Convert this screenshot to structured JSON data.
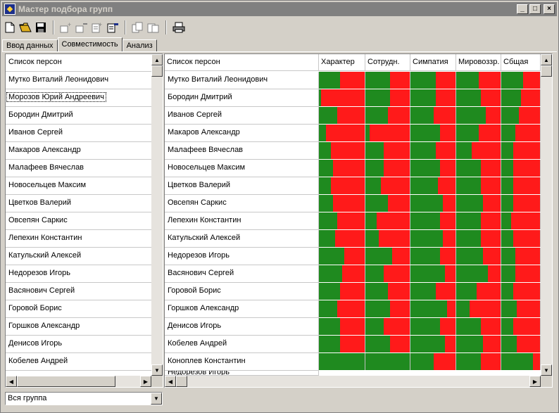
{
  "window": {
    "title": "Мастер подбора групп"
  },
  "title_buttons": {
    "minimize": "_",
    "maximize": "□",
    "close": "×"
  },
  "toolbar": {
    "icons": [
      "new-file-icon",
      "open-folder-icon",
      "save-icon",
      "add-group-icon",
      "remove-group-icon",
      "add-page-icon",
      "edit-page-icon",
      "copy-icon",
      "paste-icon",
      "print-icon"
    ]
  },
  "tabs": [
    "Ввод данных",
    "Совместимость",
    "Анализ"
  ],
  "active_tab": 1,
  "left_list": {
    "header": "Список персон",
    "selected_index": 1,
    "items": [
      "Мутко Виталий Леонидович",
      "Морозов Юрий Андреевич",
      "Бородин Дмитрий",
      "Иванов Сергей",
      "Макаров Александр",
      "Малафеев Вячеслав",
      "Новосельцев Максим",
      "Цветков Валерий",
      "Овсепян Саркис",
      "Лепехин Константин",
      "Катульский Алексей",
      "Недорезов Игорь",
      "Васянович Сергей",
      "Горовой Борис",
      "Горшков Александр",
      "Денисов Игорь",
      "Кобелев Андрей"
    ]
  },
  "grid": {
    "columns": [
      "Список персон",
      "Характер",
      "Сотрудн.",
      "Симпатия",
      "Мировоззр.",
      "Сбщая"
    ],
    "colors": {
      "compatible": "#1f8a1f",
      "incompatible": "#ff1a1a"
    },
    "rows": [
      {
        "name": "Мутко Виталий Леонидович",
        "values": [
          0.45,
          0.55,
          0.55,
          0.5,
          0.55
        ]
      },
      {
        "name": "Бородин Дмитрий",
        "values": [
          0.05,
          0.55,
          0.55,
          0.55,
          0.5
        ]
      },
      {
        "name": "Иванов Сергей",
        "values": [
          0.4,
          0.5,
          0.5,
          0.65,
          0.45
        ]
      },
      {
        "name": "Макаров Александр",
        "values": [
          0.15,
          0.1,
          0.65,
          0.5,
          0.35
        ]
      },
      {
        "name": "Малафеев Вячеслав",
        "values": [
          0.25,
          0.4,
          0.55,
          0.35,
          0.3
        ]
      },
      {
        "name": "Новосельцев Максим",
        "values": [
          0.3,
          0.4,
          0.65,
          0.55,
          0.3
        ]
      },
      {
        "name": "Цветков Валерий",
        "values": [
          0.25,
          0.35,
          0.6,
          0.55,
          0.3
        ]
      },
      {
        "name": "Овсепян Саркис",
        "values": [
          0.3,
          0.5,
          0.7,
          0.6,
          0.3
        ]
      },
      {
        "name": "Лепехин Константин",
        "values": [
          0.4,
          0.25,
          0.65,
          0.55,
          0.25
        ]
      },
      {
        "name": "Катульский Алексей",
        "values": [
          0.35,
          0.3,
          0.7,
          0.55,
          0.3
        ]
      },
      {
        "name": "Недорезов Игорь",
        "values": [
          0.55,
          0.6,
          0.65,
          0.6,
          0.35
        ]
      },
      {
        "name": "Васянович Сергей",
        "values": [
          0.5,
          0.4,
          0.75,
          0.7,
          0.35
        ]
      },
      {
        "name": "Горовой Борис",
        "values": [
          0.45,
          0.5,
          0.55,
          0.45,
          0.3
        ]
      },
      {
        "name": "Горшков Александр",
        "values": [
          0.4,
          0.55,
          0.8,
          0.3,
          0.4
        ]
      },
      {
        "name": "Денисов Игорь",
        "values": [
          0.45,
          0.4,
          0.65,
          0.55,
          0.3
        ]
      },
      {
        "name": "Кобелев Андрей",
        "values": [
          0.45,
          0.55,
          0.75,
          0.6,
          0.4
        ]
      },
      {
        "name": "Коноплев Константин",
        "values": [
          1.0,
          1.0,
          0.5,
          0.55,
          0.8
        ]
      }
    ],
    "partial_row_name": "Недорезов Игорь"
  },
  "group_combo": {
    "value": "Вся группа"
  },
  "scroll_arrows": {
    "up": "▲",
    "down": "▼",
    "left": "◀",
    "right": "▶"
  }
}
